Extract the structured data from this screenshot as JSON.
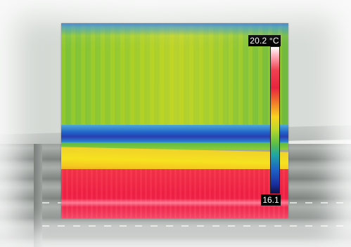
{
  "thermal_image": {
    "scale_max_label": "20.2 °C",
    "scale_min_label": "16.1",
    "palette_top_color": "#ffffff",
    "palette_bottom_color": "#0d1248"
  },
  "background": {
    "subject": "wall-and-roller-shutter"
  }
}
